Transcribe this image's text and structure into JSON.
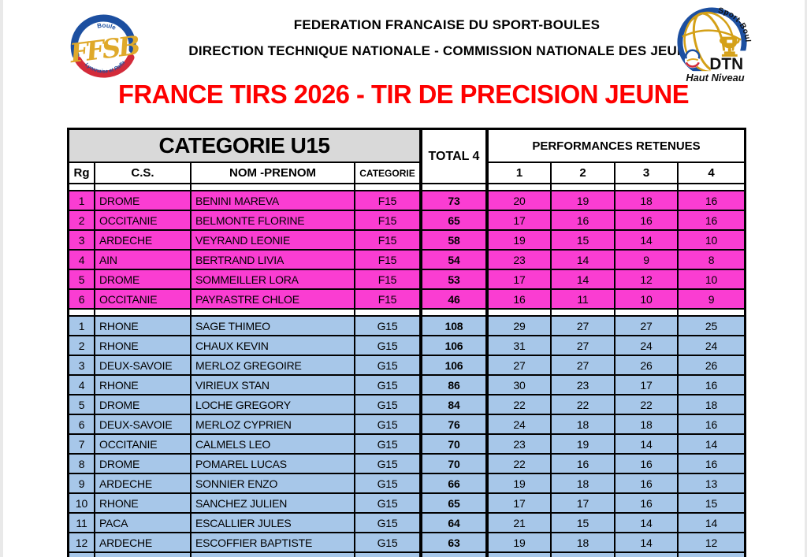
{
  "header": {
    "org_line1": "FEDERATION FRANCAISE DU SPORT-BOULES",
    "org_line2": "DIRECTION TECHNIQUE NATIONALE - COMMISSION NATIONALE DES JEUNES",
    "title": "FRANCE TIRS 2026 - TIR DE PRECISION JEUNE"
  },
  "logos": {
    "ffsb": {
      "acronym": "FFSB",
      "top_text": "Boule",
      "bottom_text": "Lyonnaise et Raffa"
    },
    "dtn": {
      "arc_text": "Sport-Boules",
      "main_text": "DTN",
      "sub_text": "Haut Niveau"
    }
  },
  "table": {
    "category_header": "CATEGORIE U15",
    "total_header": "TOTAL 4",
    "performances_header": "PERFORMANCES RETENUES",
    "columns": [
      "Rg",
      "C.S.",
      "NOM -PRENOM",
      "CATEGORIE"
    ],
    "perf_columns": [
      "1",
      "2",
      "3",
      "4"
    ],
    "cell_names": [
      "rank-cell",
      "cs-cell",
      "name-cell",
      "category-cell",
      "total-cell",
      "perf-1-cell",
      "perf-2-cell",
      "perf-3-cell",
      "perf-4-cell"
    ],
    "sections": [
      {
        "id": "F15",
        "row_color": "#fa3dd2",
        "rows": [
          [
            "1",
            "DROME",
            "BENINI MAREVA",
            "F15",
            "73",
            "20",
            "19",
            "18",
            "16"
          ],
          [
            "2",
            "OCCITANIE",
            "BELMONTE FLORINE",
            "F15",
            "65",
            "17",
            "16",
            "16",
            "16"
          ],
          [
            "3",
            "ARDECHE",
            "VEYRAND LEONIE",
            "F15",
            "58",
            "19",
            "15",
            "14",
            "10"
          ],
          [
            "4",
            "AIN",
            "BERTRAND LIVIA",
            "F15",
            "54",
            "23",
            "14",
            "9",
            "8"
          ],
          [
            "5",
            "DROME",
            "SOMMEILLER LORA",
            "F15",
            "53",
            "17",
            "14",
            "12",
            "10"
          ],
          [
            "6",
            "OCCITANIE",
            "PAYRASTRE CHLOE",
            "F15",
            "46",
            "16",
            "11",
            "10",
            "9"
          ]
        ]
      },
      {
        "id": "G15",
        "row_color": "#a7c7e9",
        "rows": [
          [
            "1",
            "RHONE",
            "SAGE THIMEO",
            "G15",
            "108",
            "29",
            "27",
            "27",
            "25"
          ],
          [
            "2",
            "RHONE",
            "CHAUX KEVIN",
            "G15",
            "106",
            "31",
            "27",
            "24",
            "24"
          ],
          [
            "3",
            "DEUX-SAVOIE",
            "MERLOZ GREGOIRE",
            "G15",
            "106",
            "27",
            "27",
            "26",
            "26"
          ],
          [
            "4",
            "RHONE",
            "VIRIEUX STAN",
            "G15",
            "86",
            "30",
            "23",
            "17",
            "16"
          ],
          [
            "5",
            "DROME",
            "LOCHE GREGORY",
            "G15",
            "84",
            "22",
            "22",
            "22",
            "18"
          ],
          [
            "6",
            "DEUX-SAVOIE",
            "MERLOZ CYPRIEN",
            "G15",
            "76",
            "24",
            "18",
            "18",
            "16"
          ],
          [
            "7",
            "OCCITANIE",
            "CALMELS LEO",
            "G15",
            "70",
            "23",
            "19",
            "14",
            "14"
          ],
          [
            "8",
            "DROME",
            "POMAREL LUCAS",
            "G15",
            "70",
            "22",
            "16",
            "16",
            "16"
          ],
          [
            "9",
            "ARDECHE",
            "SONNIER ENZO",
            "G15",
            "66",
            "19",
            "18",
            "16",
            "13"
          ],
          [
            "10",
            "RHONE",
            "SANCHEZ JULIEN",
            "G15",
            "65",
            "17",
            "17",
            "16",
            "15"
          ],
          [
            "11",
            "PACA",
            "ESCALLIER JULES",
            "G15",
            "64",
            "21",
            "15",
            "14",
            "14"
          ],
          [
            "12",
            "ARDECHE",
            "ESCOFFIER BAPTISTE",
            "G15",
            "63",
            "19",
            "18",
            "14",
            "12"
          ]
        ]
      }
    ]
  },
  "colors": {
    "title_red": "#fe0000",
    "header_gray": "#d9d9d9",
    "f15_pink": "#fa3dd2",
    "g15_blue": "#a7c7e9",
    "logo_blue": "#1c4fa0",
    "logo_red": "#d32b3a",
    "logo_gold": "#dfa92a"
  }
}
